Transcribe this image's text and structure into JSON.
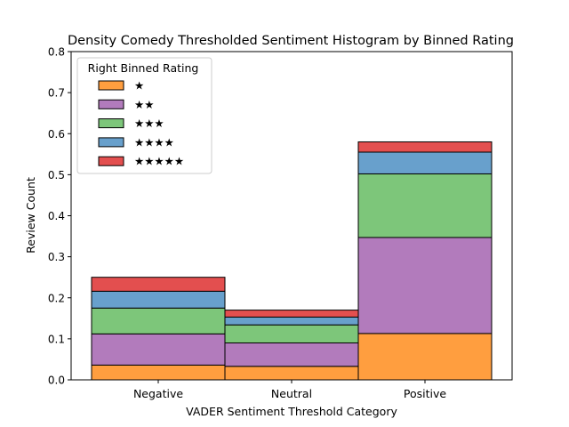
{
  "chart_data": {
    "type": "bar",
    "stacked": true,
    "title": "Density Comedy Thresholded Sentiment Histogram by Binned Rating",
    "xlabel": "VADER Sentiment Threshold Category",
    "ylabel": "Review Count",
    "ylim": [
      0,
      0.8
    ],
    "yticks": [
      "0.0",
      "0.1",
      "0.2",
      "0.3",
      "0.4",
      "0.5",
      "0.6",
      "0.7",
      "0.8"
    ],
    "categories": [
      "Negative",
      "Neutral",
      "Positive"
    ],
    "legend": {
      "title": "Right Binned Rating",
      "placement": "top-left"
    },
    "series": [
      {
        "name": "★",
        "color": "#ff9e3f",
        "values": [
          0.036,
          0.033,
          0.113
        ]
      },
      {
        "name": "★★",
        "color": "#b27bbc",
        "values": [
          0.076,
          0.057,
          0.234
        ]
      },
      {
        "name": "★★★",
        "color": "#7dc67a",
        "values": [
          0.063,
          0.044,
          0.155
        ]
      },
      {
        "name": "★★★★",
        "color": "#68a0cc",
        "values": [
          0.041,
          0.019,
          0.053
        ]
      },
      {
        "name": "★★★★★",
        "color": "#e34f4f",
        "values": [
          0.034,
          0.017,
          0.025
        ]
      }
    ]
  }
}
